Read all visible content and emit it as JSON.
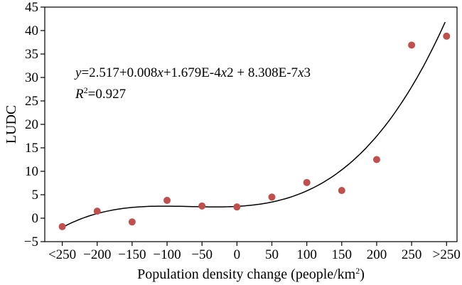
{
  "chart_data": {
    "type": "scatter",
    "xlabel_main": "Population density change (people/km",
    "xlabel_sup": "2",
    "xlabel_close": ")",
    "ylabel": "LUDC",
    "x_tick_labels": [
      "<250",
      "−200",
      "−150",
      "−100",
      "−50",
      "0",
      "50",
      "100",
      "150",
      "200",
      "250",
      ">250"
    ],
    "x_tick_values": [
      -250,
      -200,
      -150,
      -100,
      -50,
      0,
      50,
      100,
      150,
      200,
      250,
      300
    ],
    "y_ticks": [
      -5,
      0,
      5,
      10,
      15,
      20,
      25,
      30,
      35,
      40,
      45
    ],
    "y_tick_labels": [
      "−5",
      "0",
      "5",
      "10",
      "15",
      "20",
      "25",
      "30",
      "35",
      "40",
      "45"
    ],
    "ylim": [
      -5,
      45
    ],
    "xlim": [
      -275,
      315
    ],
    "points": [
      {
        "x": -250,
        "y": -1.8
      },
      {
        "x": -200,
        "y": 1.5
      },
      {
        "x": -150,
        "y": -0.8
      },
      {
        "x": -100,
        "y": 3.8
      },
      {
        "x": -50,
        "y": 2.6
      },
      {
        "x": 0,
        "y": 2.4
      },
      {
        "x": 50,
        "y": 4.5
      },
      {
        "x": 100,
        "y": 7.6
      },
      {
        "x": 150,
        "y": 5.9
      },
      {
        "x": 200,
        "y": 12.5
      },
      {
        "x": 250,
        "y": 36.9
      },
      {
        "x": 300,
        "y": 38.8
      }
    ],
    "fit_coefficients": [
      2.517,
      0.008,
      0.0001679,
      8.308e-07
    ],
    "fit_x_range": [
      -250,
      298
    ],
    "equation_prefix": "y",
    "equation_body": "=2.517+0.008",
    "equation_x1": "x",
    "equation_mid": "+1.679E-4",
    "equation_x2": "x",
    "equation_tail": "2 + 8.308E-7",
    "equation_x3": "x",
    "equation_end": "3",
    "r2_symbol": "R",
    "r2_sup": "2",
    "r2_value": "=0.927",
    "point_color": "#c0504d",
    "line_color": "#000000"
  }
}
